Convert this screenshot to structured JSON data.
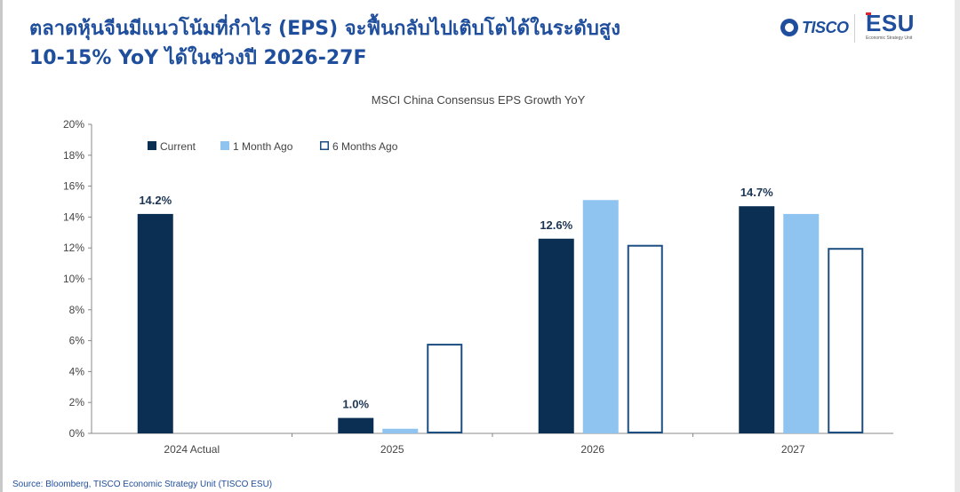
{
  "headline": {
    "line1": "ตลาดหุ้นจีนมีแนวโน้มที่กำไร (EPS) จะฟื้นกลับไปเติบโตได้ในระดับสูง",
    "line2": "10-15% YoY ได้ในช่วงปี 2026-27F"
  },
  "logos": {
    "tisco": "TISCO",
    "esu": "ESU",
    "esu_sub": "Economic Strategy Unit"
  },
  "colors": {
    "current": "#0b2f52",
    "one_month_ago": "#8fc3f0",
    "six_months_ago_border": "#1c4e82",
    "axis": "#888888",
    "text": "#444444"
  },
  "chart_data": {
    "type": "bar",
    "title": "MSCI China Consensus EPS Growth YoY",
    "categories": [
      "2024 Actual",
      "2025",
      "2026",
      "2027"
    ],
    "series": [
      {
        "name": "Current",
        "values": [
          14.2,
          1.0,
          12.6,
          14.7
        ]
      },
      {
        "name": "1 Month Ago",
        "values": [
          null,
          0.3,
          15.1,
          14.2
        ]
      },
      {
        "name": "6 Months Ago",
        "values": [
          null,
          5.8,
          12.2,
          12.0
        ]
      }
    ],
    "data_labels": [
      "14.2%",
      "1.0%",
      "12.6%",
      "14.7%"
    ],
    "ylim": [
      0,
      20
    ],
    "yticks": [
      "0%",
      "2%",
      "4%",
      "6%",
      "8%",
      "10%",
      "12%",
      "14%",
      "16%",
      "18%",
      "20%"
    ],
    "grid": false,
    "legend": "top-left"
  },
  "source": "Source: Bloomberg, TISCO Economic Strategy Unit (TISCO ESU)"
}
